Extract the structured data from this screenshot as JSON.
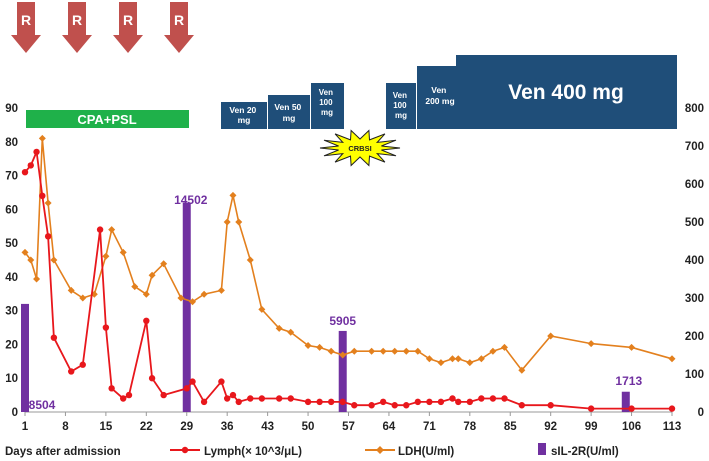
{
  "colors": {
    "lymph": "#e8171c",
    "ldh": "#e3801e",
    "sil2r": "#7030a0",
    "treatment_blue": "#1f4e79",
    "cpa_green": "#1fb14a",
    "arrow_red": "#c0504d",
    "crbsi_yellow": "#ffff00"
  },
  "top_markers": [
    "R",
    "R",
    "R",
    "R"
  ],
  "treatments": {
    "cpa_psl": "CPA+PSL",
    "ven_boxes": [
      {
        "lines": [
          "Ven 20",
          "mg"
        ]
      },
      {
        "lines": [
          "Ven 50",
          "mg"
        ]
      },
      {
        "lines": [
          "Ven",
          "100",
          "mg"
        ]
      },
      {
        "lines": [
          "Ven",
          "100",
          "mg"
        ]
      },
      {
        "lines": [
          "Ven",
          "200 mg"
        ]
      },
      {
        "lines": [
          "Ven 400 mg"
        ]
      }
    ],
    "crbsi": "CRBSI"
  },
  "chart_data": {
    "type": "line",
    "xlabel": "Days after admission",
    "x_ticks": [
      1,
      8,
      15,
      22,
      29,
      36,
      43,
      50,
      57,
      64,
      71,
      78,
      85,
      92,
      99,
      106,
      113
    ],
    "xlim": [
      1,
      113
    ],
    "y_left": {
      "lim": [
        0,
        90
      ],
      "ticks": [
        0,
        10,
        20,
        30,
        40,
        50,
        60,
        70,
        80,
        90
      ]
    },
    "y_right": {
      "lim": [
        0,
        800
      ],
      "ticks": [
        0,
        100,
        200,
        300,
        400,
        500,
        600,
        700,
        800
      ]
    },
    "series": [
      {
        "name": "Lymph(× 10^3/μL)",
        "axis": "left",
        "marker": "circle",
        "x": [
          1,
          2,
          3,
          4,
          5,
          6,
          9,
          11,
          14,
          15,
          16,
          18,
          19,
          22,
          23,
          25,
          29,
          30,
          32,
          35,
          36,
          37,
          38,
          40,
          42,
          45,
          47,
          50,
          52,
          54,
          56,
          58,
          61,
          63,
          65,
          67,
          69,
          71,
          73,
          75,
          76,
          78,
          80,
          82,
          84,
          87,
          92,
          99,
          106,
          113
        ],
        "values": [
          71,
          73,
          77,
          64,
          52,
          22,
          12,
          14,
          54,
          25,
          7,
          4,
          5,
          27,
          10,
          5,
          7,
          9,
          3,
          9,
          4,
          5,
          3,
          4,
          4,
          4,
          4,
          3,
          3,
          3,
          3,
          2,
          2,
          3,
          2,
          2,
          3,
          3,
          3,
          4,
          3,
          3,
          4,
          4,
          4,
          2,
          2,
          1,
          1,
          1
        ]
      },
      {
        "name": "LDH(U/ml)",
        "axis": "right",
        "marker": "diamond",
        "x": [
          1,
          2,
          3,
          4,
          5,
          6,
          9,
          11,
          13,
          15,
          16,
          18,
          20,
          22,
          23,
          25,
          28,
          30,
          32,
          35,
          36,
          37,
          38,
          40,
          42,
          45,
          47,
          50,
          52,
          54,
          56,
          58,
          61,
          63,
          65,
          67,
          69,
          71,
          73,
          75,
          76,
          78,
          80,
          82,
          84,
          87,
          92,
          99,
          106,
          113
        ],
        "values": [
          420,
          400,
          350,
          720,
          550,
          400,
          320,
          300,
          310,
          410,
          480,
          420,
          330,
          310,
          360,
          390,
          300,
          290,
          310,
          320,
          500,
          570,
          500,
          400,
          270,
          220,
          210,
          175,
          170,
          160,
          150,
          160,
          160,
          160,
          160,
          160,
          160,
          140,
          130,
          140,
          140,
          130,
          140,
          160,
          170,
          110,
          200,
          180,
          170,
          140
        ]
      },
      {
        "name": "sIL-2R(U/ml)",
        "axis": "left",
        "type": "bar",
        "x": [
          1,
          29,
          56,
          105
        ],
        "values": [
          32,
          62,
          24,
          6
        ],
        "labels": [
          "8504",
          "14502",
          "5905",
          "1713"
        ]
      }
    ]
  }
}
